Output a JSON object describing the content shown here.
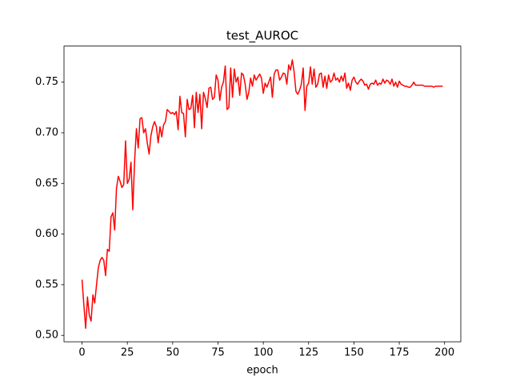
{
  "chart_data": {
    "type": "line",
    "title": "test_AUROC",
    "xlabel": "epoch",
    "x": [
      0,
      1,
      2,
      3,
      4,
      5,
      6,
      7,
      8,
      9,
      10,
      11,
      12,
      13,
      14,
      15,
      16,
      17,
      18,
      19,
      20,
      21,
      22,
      23,
      24,
      25,
      26,
      27,
      28,
      29,
      30,
      31,
      32,
      33,
      34,
      35,
      36,
      37,
      38,
      39,
      40,
      41,
      42,
      43,
      44,
      45,
      46,
      47,
      48,
      49,
      50,
      51,
      52,
      53,
      54,
      55,
      56,
      57,
      58,
      59,
      60,
      61,
      62,
      63,
      64,
      65,
      66,
      67,
      68,
      69,
      70,
      71,
      72,
      73,
      74,
      75,
      76,
      77,
      78,
      79,
      80,
      81,
      82,
      83,
      84,
      85,
      86,
      87,
      88,
      89,
      90,
      91,
      92,
      93,
      94,
      95,
      96,
      97,
      98,
      99,
      100,
      101,
      102,
      103,
      104,
      105,
      106,
      107,
      108,
      109,
      110,
      111,
      112,
      113,
      114,
      115,
      116,
      117,
      118,
      119,
      120,
      121,
      122,
      123,
      124,
      125,
      126,
      127,
      128,
      129,
      130,
      131,
      132,
      133,
      134,
      135,
      136,
      137,
      138,
      139,
      140,
      141,
      142,
      143,
      144,
      145,
      146,
      147,
      148,
      149,
      150,
      151,
      152,
      153,
      154,
      155,
      156,
      157,
      158,
      159,
      160,
      161,
      162,
      163,
      164,
      165,
      166,
      167,
      168,
      169,
      170,
      171,
      172,
      173,
      174,
      175,
      176,
      177,
      178,
      179,
      180,
      181,
      182,
      183,
      184,
      185,
      186,
      187,
      188,
      189,
      190,
      191,
      192,
      193,
      194,
      195,
      196,
      197,
      198,
      199
    ],
    "series": [
      {
        "name": "test_AUROC",
        "color": "#ff0000",
        "values": [
          0.555,
          0.53,
          0.507,
          0.538,
          0.52,
          0.514,
          0.54,
          0.532,
          0.55,
          0.567,
          0.574,
          0.577,
          0.574,
          0.559,
          0.585,
          0.583,
          0.617,
          0.621,
          0.604,
          0.645,
          0.657,
          0.652,
          0.646,
          0.649,
          0.692,
          0.65,
          0.654,
          0.671,
          0.624,
          0.672,
          0.704,
          0.685,
          0.714,
          0.715,
          0.7,
          0.704,
          0.69,
          0.679,
          0.697,
          0.706,
          0.711,
          0.706,
          0.69,
          0.706,
          0.696,
          0.708,
          0.711,
          0.723,
          0.721,
          0.719,
          0.72,
          0.718,
          0.721,
          0.703,
          0.736,
          0.72,
          0.719,
          0.696,
          0.733,
          0.723,
          0.724,
          0.737,
          0.705,
          0.74,
          0.72,
          0.738,
          0.704,
          0.74,
          0.734,
          0.725,
          0.744,
          0.745,
          0.733,
          0.735,
          0.757,
          0.752,
          0.732,
          0.745,
          0.75,
          0.766,
          0.723,
          0.725,
          0.764,
          0.735,
          0.763,
          0.75,
          0.755,
          0.737,
          0.759,
          0.757,
          0.748,
          0.733,
          0.74,
          0.754,
          0.746,
          0.757,
          0.752,
          0.755,
          0.758,
          0.754,
          0.739,
          0.749,
          0.745,
          0.75,
          0.755,
          0.735,
          0.758,
          0.762,
          0.762,
          0.752,
          0.755,
          0.759,
          0.758,
          0.748,
          0.767,
          0.762,
          0.772,
          0.76,
          0.741,
          0.738,
          0.742,
          0.748,
          0.764,
          0.722,
          0.746,
          0.749,
          0.765,
          0.748,
          0.763,
          0.745,
          0.748,
          0.758,
          0.759,
          0.745,
          0.756,
          0.744,
          0.757,
          0.75,
          0.752,
          0.759,
          0.752,
          0.754,
          0.75,
          0.756,
          0.751,
          0.759,
          0.744,
          0.749,
          0.742,
          0.752,
          0.755,
          0.75,
          0.748,
          0.751,
          0.753,
          0.751,
          0.747,
          0.748,
          0.743,
          0.748,
          0.749,
          0.748,
          0.752,
          0.747,
          0.749,
          0.748,
          0.753,
          0.749,
          0.752,
          0.751,
          0.748,
          0.753,
          0.746,
          0.75,
          0.745,
          0.751,
          0.748,
          0.747,
          0.746,
          0.746,
          0.745,
          0.745,
          0.747,
          0.75,
          0.747,
          0.747,
          0.747,
          0.747,
          0.747,
          0.746,
          0.746,
          0.746,
          0.746,
          0.746,
          0.745,
          0.746,
          0.746,
          0.746,
          0.746,
          0.746
        ]
      }
    ],
    "xlim": [
      -9.95,
      208.95
    ],
    "xticks": [
      0,
      25,
      50,
      75,
      100,
      125,
      150,
      175,
      200
    ],
    "ylim": [
      0.4937,
      0.7856
    ],
    "yticks": [
      {
        "value": 0.5,
        "label": "0.50"
      },
      {
        "value": 0.55,
        "label": "0.55"
      },
      {
        "value": 0.6,
        "label": "0.60"
      },
      {
        "value": 0.65,
        "label": "0.65"
      },
      {
        "value": 0.7,
        "label": "0.70"
      },
      {
        "value": 0.75,
        "label": "0.75"
      }
    ],
    "grid": false
  }
}
